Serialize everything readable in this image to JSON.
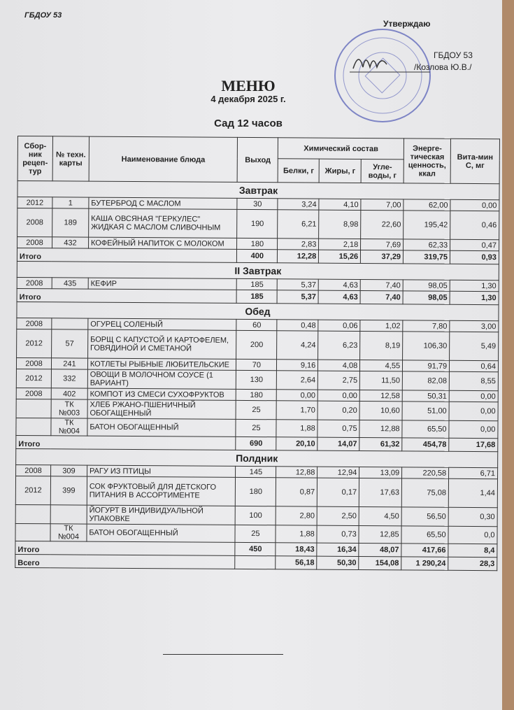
{
  "header": {
    "org": "ГБДОУ 53",
    "approve": "Утверждаю",
    "org_right": "ГБДОУ 53",
    "signer": "/Козлова Ю.В./",
    "title": "МЕНЮ",
    "date": "4 декабря 2025 г.",
    "subtitle": "Сад 12 часов"
  },
  "columns": {
    "collection": "Сбор-ник рецеп-тур",
    "tech_card": "№ техн. карты",
    "dish": "Наименование блюда",
    "yield": "Выход",
    "chem": "Химический состав",
    "protein": "Белки, г",
    "fat": "Жиры, г",
    "carbs": "Угле-воды, г",
    "energy": "Энерге-тическая ценность, ккал",
    "vitc": "Вита-мин С, мг"
  },
  "total_label": "Итого",
  "sections": [
    {
      "title": "Завтрак",
      "items": [
        [
          "2012",
          "1",
          "БУТЕРБРОД С МАСЛОМ",
          "30",
          "3,24",
          "4,10",
          "7,00",
          "62,00",
          "0,00"
        ],
        [
          "2008",
          "189",
          "КАША ОВСЯНАЯ \"ГЕРКУЛЕС\" ЖИДКАЯ С МАСЛОМ СЛИВОЧНЫМ",
          "190",
          "6,21",
          "8,98",
          "22,60",
          "195,42",
          "0,46"
        ],
        [
          "2008",
          "432",
          "КОФЕЙНЫЙ НАПИТОК С МОЛОКОМ",
          "180",
          "2,83",
          "2,18",
          "7,69",
          "62,33",
          "0,47"
        ]
      ],
      "total": [
        "400",
        "12,28",
        "15,26",
        "37,29",
        "319,75",
        "0,93"
      ]
    },
    {
      "title": "II Завтрак",
      "items": [
        [
          "2008",
          "435",
          "КЕФИР",
          "185",
          "5,37",
          "4,63",
          "7,40",
          "98,05",
          "1,30"
        ]
      ],
      "total": [
        "185",
        "5,37",
        "4,63",
        "7,40",
        "98,05",
        "1,30"
      ]
    },
    {
      "title": "Обед",
      "items": [
        [
          "2008",
          "",
          "ОГУРЕЦ СОЛЕНЫЙ",
          "60",
          "0,48",
          "0,06",
          "1,02",
          "7,80",
          "3,00"
        ],
        [
          "2012",
          "57",
          "БОРЩ С КАПУСТОЙ И КАРТОФЕЛЕМ, ГОВЯДИНОЙ И СМЕТАНОЙ",
          "200",
          "4,24",
          "6,23",
          "8,19",
          "106,30",
          "5,49"
        ],
        [
          "2008",
          "241",
          "КОТЛЕТЫ РЫБНЫЕ ЛЮБИТЕЛЬСКИЕ",
          "70",
          "9,16",
          "4,08",
          "4,55",
          "91,79",
          "0,64"
        ],
        [
          "2012",
          "332",
          "ОВОЩИ В МОЛОЧНОМ СОУСЕ (1 ВАРИАНТ)",
          "130",
          "2,64",
          "2,75",
          "11,50",
          "82,08",
          "8,55"
        ],
        [
          "2008",
          "402",
          "КОМПОТ ИЗ СМЕСИ СУХОФРУКТОВ",
          "180",
          "0,00",
          "0,00",
          "12,58",
          "50,31",
          "0,00"
        ],
        [
          "",
          "ТК №003",
          "ХЛЕБ РЖАНО-ПШЕНИЧНЫЙ ОБОГАЩЕННЫЙ",
          "25",
          "1,70",
          "0,20",
          "10,60",
          "51,00",
          "0,00"
        ],
        [
          "",
          "ТК №004",
          "БАТОН ОБОГАЩЕННЫЙ",
          "25",
          "1,88",
          "0,75",
          "12,88",
          "65,50",
          "0,00"
        ]
      ],
      "total": [
        "690",
        "20,10",
        "14,07",
        "61,32",
        "454,78",
        "17,68"
      ]
    },
    {
      "title": "Полдник",
      "items": [
        [
          "2008",
          "309",
          "РАГУ ИЗ ПТИЦЫ",
          "145",
          "12,88",
          "12,94",
          "13,09",
          "220,58",
          "6,71"
        ],
        [
          "2012",
          "399",
          "СОК ФРУКТОВЫЙ ДЛЯ ДЕТСКОГО ПИТАНИЯ В АССОРТИМЕНТЕ",
          "180",
          "0,87",
          "0,17",
          "17,63",
          "75,08",
          "1,44"
        ],
        [
          "",
          "",
          "ЙОГУРТ В ИНДИВИДУАЛЬНОЙ УПАКОВКЕ",
          "100",
          "2,80",
          "2,50",
          "4,50",
          "56,50",
          "0,30"
        ],
        [
          "",
          "ТК №004",
          "БАТОН ОБОГАЩЕННЫЙ",
          "25",
          "1,88",
          "0,73",
          "12,85",
          "65,50",
          "0,0"
        ]
      ],
      "total": [
        "450",
        "18,43",
        "16,34",
        "48,07",
        "417,66",
        "8,4"
      ]
    }
  ],
  "grand_total": {
    "label": "Всего",
    "values": [
      "",
      "56,18",
      "50,30",
      "154,08",
      "1 290,24",
      "28,3"
    ]
  },
  "colors": {
    "stamp": "#5a63b8",
    "paper": "#e9e9eb",
    "ink": "#222222"
  }
}
